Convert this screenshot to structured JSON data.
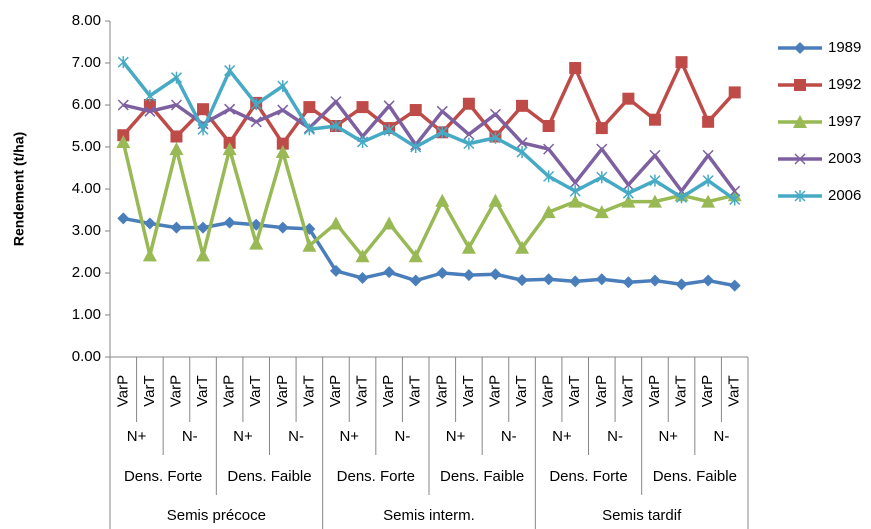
{
  "chart_data": {
    "type": "line",
    "y_label": "Rendement (t/ha)",
    "categories": [
      "VarP",
      "VarT",
      "VarP",
      "VarT",
      "VarP",
      "VarT",
      "VarP",
      "VarT",
      "VarP",
      "VarT",
      "VarP",
      "VarT",
      "VarP",
      "VarT",
      "VarP",
      "VarT",
      "VarP",
      "VarT",
      "VarP",
      "VarT",
      "VarP",
      "VarT",
      "VarP",
      "VarT"
    ],
    "category_levels": [
      [
        "N+",
        "N-",
        "N+",
        "N-",
        "N+",
        "N-",
        "N+",
        "N-",
        "N+",
        "N-",
        "N+",
        "N-"
      ],
      [
        "Dens. Forte",
        "Dens. Faible",
        "Dens. Forte",
        "Dens. Faible",
        "Dens. Forte",
        "Dens. Faible"
      ],
      [
        "Semis précoce",
        "Semis interm.",
        "Semis tardif"
      ]
    ],
    "series": [
      {
        "name": "1989",
        "color": "#4a7ebb",
        "marker": "diamond",
        "values": [
          3.3,
          3.18,
          3.08,
          3.08,
          3.2,
          3.15,
          3.08,
          3.05,
          2.05,
          1.88,
          2.02,
          1.82,
          2.0,
          1.95,
          1.97,
          1.83,
          1.85,
          1.8,
          1.85,
          1.78,
          1.82,
          1.73,
          1.82,
          1.7
        ]
      },
      {
        "name": "1992",
        "color": "#be4b48",
        "marker": "square",
        "values": [
          5.28,
          6.0,
          5.25,
          5.9,
          5.1,
          6.05,
          5.08,
          5.95,
          5.5,
          5.95,
          5.45,
          5.88,
          5.35,
          6.03,
          5.25,
          5.98,
          5.5,
          6.88,
          5.45,
          6.15,
          5.65,
          7.02,
          5.6,
          6.3
        ]
      },
      {
        "name": "1997",
        "color": "#98b954",
        "marker": "triangle",
        "values": [
          5.12,
          2.42,
          4.95,
          2.42,
          4.95,
          2.7,
          4.88,
          2.65,
          3.18,
          2.4,
          3.18,
          2.4,
          3.72,
          2.6,
          3.72,
          2.6,
          3.45,
          3.7,
          3.45,
          3.7,
          3.7,
          3.85,
          3.7,
          3.85
        ]
      },
      {
        "name": "2003",
        "color": "#7d60a0",
        "marker": "x",
        "values": [
          6.0,
          5.85,
          6.0,
          5.55,
          5.9,
          5.6,
          5.88,
          5.45,
          6.08,
          5.25,
          5.98,
          5.05,
          5.85,
          5.3,
          5.78,
          5.1,
          4.95,
          4.15,
          4.95,
          4.1,
          4.8,
          3.95,
          4.8,
          3.95
        ]
      },
      {
        "name": "2006",
        "color": "#46aac5",
        "marker": "star",
        "values": [
          7.02,
          6.22,
          6.65,
          5.42,
          6.82,
          6.02,
          6.45,
          5.42,
          5.5,
          5.12,
          5.4,
          5.0,
          5.35,
          5.08,
          5.22,
          4.88,
          4.3,
          3.95,
          4.28,
          3.9,
          4.2,
          3.8,
          4.2,
          3.75
        ]
      }
    ],
    "ylim": [
      0,
      8
    ],
    "yticks": [
      {
        "value": 0,
        "label": "0.00"
      },
      {
        "value": 1,
        "label": "1.00"
      },
      {
        "value": 2,
        "label": "2.00"
      },
      {
        "value": 3,
        "label": "3.00"
      },
      {
        "value": 4,
        "label": "4.00"
      },
      {
        "value": 5,
        "label": "5.00"
      },
      {
        "value": 6,
        "label": "6.00"
      },
      {
        "value": 7,
        "label": "7.00"
      },
      {
        "value": 8,
        "label": "8.00"
      }
    ],
    "legend": "right",
    "grid": false
  }
}
